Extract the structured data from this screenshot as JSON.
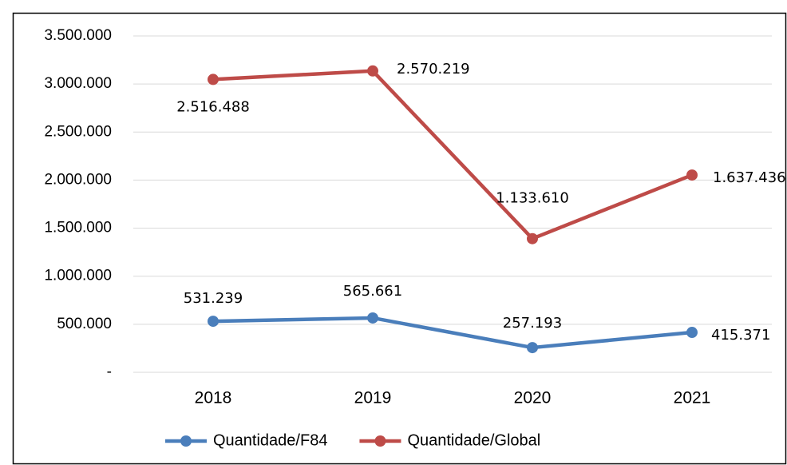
{
  "chart_data": {
    "type": "line",
    "stacked": true,
    "categories": [
      "2018",
      "2019",
      "2020",
      "2021"
    ],
    "series": [
      {
        "name": "Quantidade/F84",
        "color": "#4a7ebb",
        "values": [
          531239,
          565661,
          257193,
          415371
        ],
        "value_labels": [
          "531.239",
          "565.661",
          "257.193",
          "415.371"
        ]
      },
      {
        "name": "Quantidade/Global",
        "color": "#be4b48",
        "values": [
          2516488,
          2570219,
          1133610,
          1637436
        ],
        "value_labels": [
          "2.516.488",
          "2.570.219",
          "1.133.610",
          "1.637.436"
        ]
      }
    ],
    "ylim": [
      0,
      3500000
    ],
    "yticks": [
      {
        "value": 0,
        "label": "-"
      },
      {
        "value": 500000,
        "label": "500.000"
      },
      {
        "value": 1000000,
        "label": "1.000.000"
      },
      {
        "value": 1500000,
        "label": "1.500.000"
      },
      {
        "value": 2000000,
        "label": "2.000.000"
      },
      {
        "value": 2500000,
        "label": "2.500.000"
      },
      {
        "value": 3000000,
        "label": "3.000.000"
      },
      {
        "value": 3500000,
        "label": "3.500.000"
      }
    ],
    "grid": true,
    "legend": "bottom"
  }
}
